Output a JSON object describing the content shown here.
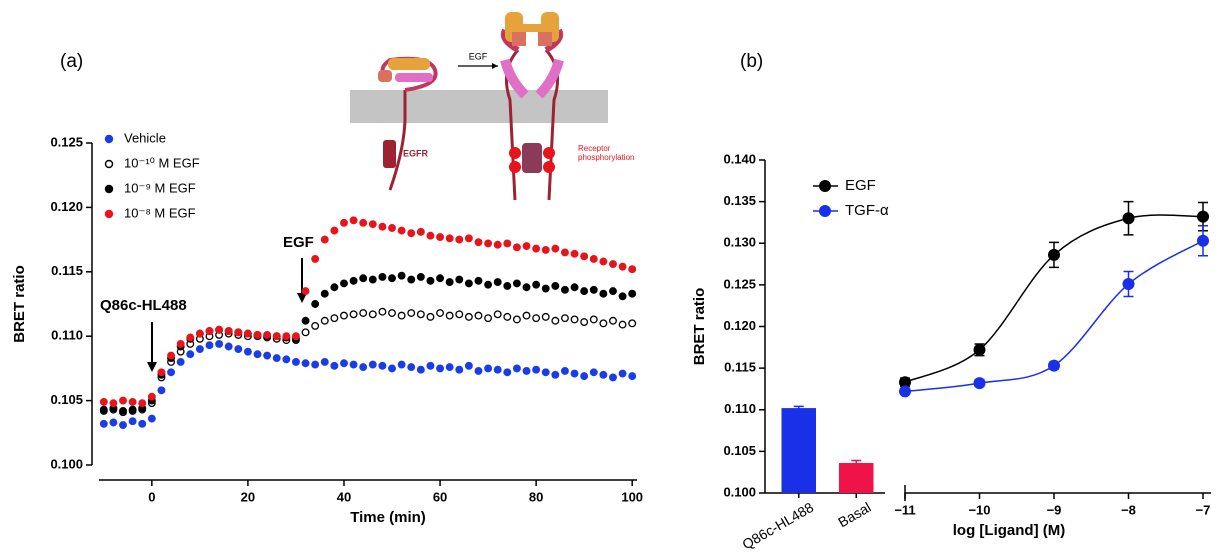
{
  "panels": [
    "(a)",
    "(b)"
  ],
  "diagram": {
    "arrow_label": "EGF",
    "receptor": "EGFR",
    "phosphorylation": [
      "Receptor",
      "phosphorylation"
    ]
  },
  "chart_data": [
    {
      "type": "scatter",
      "xlabel": "Time (min)",
      "ylabel": "BRET ratio",
      "annotations": [
        "Q86c-HL488",
        "EGF"
      ],
      "xlim": [
        -11,
        101
      ],
      "xticks": [
        0,
        20,
        40,
        60,
        80,
        100
      ],
      "ylim": [
        0.1,
        0.125
      ],
      "yticks": [
        {
          "value": 0.1,
          "label": "0.100"
        },
        {
          "value": 0.105,
          "label": "0.105"
        },
        {
          "value": 0.11,
          "label": "0.110"
        },
        {
          "value": 0.115,
          "label": "0.115"
        },
        {
          "value": 0.12,
          "label": "0.120"
        },
        {
          "value": 0.125,
          "label": "0.125"
        }
      ],
      "x": [
        -10,
        -8,
        -6,
        -4,
        -2,
        0,
        2,
        4,
        6,
        8,
        10,
        12,
        14,
        16,
        18,
        20,
        22,
        24,
        26,
        28,
        30,
        32,
        34,
        36,
        38,
        40,
        42,
        44,
        46,
        48,
        50,
        52,
        54,
        56,
        58,
        60,
        62,
        64,
        66,
        68,
        70,
        72,
        74,
        76,
        78,
        80,
        82,
        84,
        86,
        88,
        90,
        92,
        94,
        96,
        98,
        100
      ],
      "series": [
        {
          "name": "Vehicle",
          "color": "#1a3de8",
          "marker": "filled",
          "values": [
            0.1032,
            0.1033,
            0.1031,
            0.1034,
            0.1032,
            0.1036,
            0.1058,
            0.1072,
            0.108,
            0.1086,
            0.109,
            0.1093,
            0.1094,
            0.1092,
            0.109,
            0.1088,
            0.1086,
            0.1085,
            0.1083,
            0.1082,
            0.108,
            0.1079,
            0.1078,
            0.108,
            0.1077,
            0.1079,
            0.1078,
            0.1076,
            0.1078,
            0.1077,
            0.1075,
            0.1078,
            0.1076,
            0.1074,
            0.1077,
            0.1075,
            0.1076,
            0.1074,
            0.1077,
            0.1073,
            0.1075,
            0.1074,
            0.1072,
            0.1075,
            0.1073,
            0.1074,
            0.1072,
            0.107,
            0.1073,
            0.1071,
            0.1069,
            0.1072,
            0.107,
            0.1068,
            0.1071,
            0.1069
          ]
        },
        {
          "name": "10⁻¹⁰ M EGF",
          "color": "#000000",
          "marker": "open",
          "values": [
            0.1042,
            0.1043,
            0.1041,
            0.1042,
            0.1043,
            0.1048,
            0.1068,
            0.108,
            0.1088,
            0.1094,
            0.1098,
            0.11,
            0.1101,
            0.1102,
            0.1101,
            0.11,
            0.11,
            0.1099,
            0.1098,
            0.1097,
            0.1097,
            0.1103,
            0.1108,
            0.1112,
            0.1114,
            0.1116,
            0.1117,
            0.1118,
            0.1117,
            0.1119,
            0.1118,
            0.1116,
            0.1118,
            0.1117,
            0.1115,
            0.1118,
            0.1116,
            0.1117,
            0.1115,
            0.1116,
            0.1114,
            0.1117,
            0.1115,
            0.1113,
            0.1116,
            0.1114,
            0.1115,
            0.1112,
            0.1114,
            0.1113,
            0.1111,
            0.1113,
            0.111,
            0.1112,
            0.1109,
            0.111
          ]
        },
        {
          "name": "10⁻⁹ M EGF",
          "color": "#000000",
          "marker": "filled",
          "values": [
            0.1043,
            0.1044,
            0.1042,
            0.1043,
            0.1044,
            0.105,
            0.107,
            0.1083,
            0.1092,
            0.1098,
            0.1102,
            0.1104,
            0.1105,
            0.1104,
            0.1103,
            0.1102,
            0.1101,
            0.11,
            0.11,
            0.1099,
            0.1098,
            0.1112,
            0.1125,
            0.1133,
            0.1138,
            0.1141,
            0.1143,
            0.1145,
            0.1144,
            0.1146,
            0.1145,
            0.1147,
            0.1144,
            0.1146,
            0.1143,
            0.1145,
            0.1142,
            0.1144,
            0.1141,
            0.1143,
            0.114,
            0.1142,
            0.1139,
            0.1141,
            0.1138,
            0.114,
            0.1137,
            0.1139,
            0.1136,
            0.1138,
            0.1135,
            0.1136,
            0.1133,
            0.1135,
            0.1131,
            0.1133
          ]
        },
        {
          "name": "10⁻⁸ M EGF",
          "color": "#e8141c",
          "marker": "filled",
          "values": [
            0.1049,
            0.1048,
            0.105,
            0.1049,
            0.1048,
            0.1053,
            0.1072,
            0.1085,
            0.1094,
            0.1099,
            0.1102,
            0.1104,
            0.1105,
            0.1104,
            0.1103,
            0.1102,
            0.1101,
            0.1101,
            0.11,
            0.11,
            0.11,
            0.1135,
            0.116,
            0.1175,
            0.1182,
            0.1188,
            0.119,
            0.1188,
            0.1187,
            0.1185,
            0.1184,
            0.1182,
            0.118,
            0.1181,
            0.1178,
            0.1177,
            0.1176,
            0.1175,
            0.1176,
            0.1173,
            0.1172,
            0.1171,
            0.1172,
            0.1169,
            0.117,
            0.1168,
            0.1167,
            0.1168,
            0.1165,
            0.1164,
            0.1162,
            0.116,
            0.1158,
            0.1156,
            0.1154,
            0.1152
          ]
        }
      ]
    },
    {
      "type": "bar",
      "ylabel": "BRET ratio",
      "categories": [
        "Q86c-HL488",
        "Basal"
      ],
      "values": [
        0.1102,
        0.1036
      ],
      "errors": [
        0.0002,
        0.0003
      ],
      "colors": [
        "#1a2fe8",
        "#f0134a"
      ],
      "ylim": [
        0.1,
        0.14
      ],
      "yticks": [
        {
          "value": 0.1,
          "label": "0.100"
        },
        {
          "value": 0.105,
          "label": "0.105"
        },
        {
          "value": 0.11,
          "label": "0.110"
        },
        {
          "value": 0.115,
          "label": "0.115"
        },
        {
          "value": 0.12,
          "label": "0.120"
        },
        {
          "value": 0.125,
          "label": "0.125"
        },
        {
          "value": 0.13,
          "label": "0.130"
        },
        {
          "value": 0.135,
          "label": "0.135"
        },
        {
          "value": 0.14,
          "label": "0.140"
        }
      ]
    },
    {
      "type": "line",
      "xlabel": "log [Ligand] (M)",
      "xlim": [
        -11,
        -7
      ],
      "xticks": [
        {
          "value": -11,
          "label": "−11"
        },
        {
          "value": -10,
          "label": "−10"
        },
        {
          "value": -9,
          "label": "−9"
        },
        {
          "value": -8,
          "label": "−8"
        },
        {
          "value": -7,
          "label": "−7"
        }
      ],
      "ylim": [
        0.1,
        0.14
      ],
      "x": [
        -11,
        -10,
        -9,
        -8,
        -7
      ],
      "series": [
        {
          "name": "EGF",
          "color": "#000000",
          "values": [
            0.1133,
            0.1172,
            0.1286,
            0.133,
            0.1332
          ],
          "errors": [
            0.0005,
            0.0007,
            0.0015,
            0.002,
            0.0017
          ]
        },
        {
          "name": "TGF-α",
          "color": "#1a2fe8",
          "values": [
            0.1122,
            0.1132,
            0.1153,
            0.1251,
            0.1303
          ],
          "errors": [
            0.0003,
            0.0004,
            0.0004,
            0.0015,
            0.0018
          ]
        }
      ]
    }
  ]
}
